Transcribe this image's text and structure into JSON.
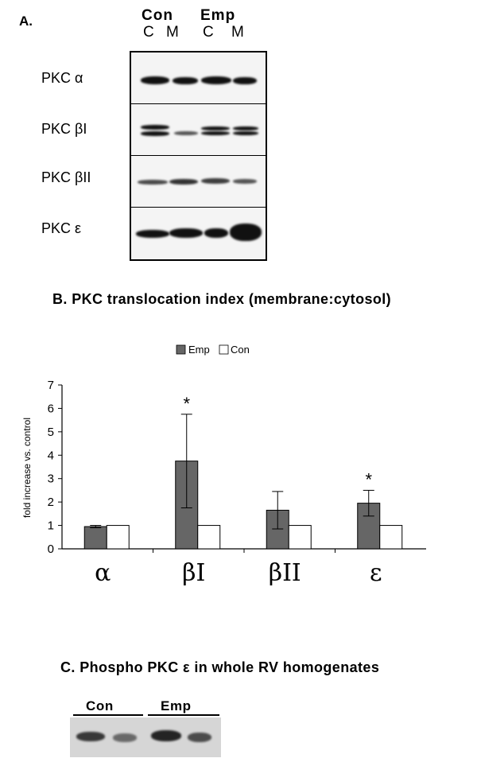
{
  "panel_a": {
    "label": "A.",
    "group_labels": [
      "Con",
      "Emp"
    ],
    "lane_labels": [
      "C",
      "M",
      "C",
      "M"
    ],
    "row_labels": [
      "PKC α",
      "PKC βI",
      "PKC βII",
      "PKC ε"
    ]
  },
  "panel_b": {
    "title": "B. PKC translocation index (membrane:cytosol)"
  },
  "panel_c": {
    "title": "C.  Phospho PKC ε in whole RV homogenates",
    "group_labels": [
      "Con",
      "Emp"
    ]
  },
  "chart_data": {
    "type": "bar",
    "categories": [
      "α",
      "βI",
      "βII",
      "ε"
    ],
    "series": [
      {
        "name": "Emp",
        "values": [
          0.95,
          3.75,
          1.65,
          1.95
        ],
        "errors": [
          0.05,
          2.0,
          0.8,
          0.55
        ],
        "color": "#666666"
      },
      {
        "name": "Con",
        "values": [
          1.0,
          1.0,
          1.0,
          1.0
        ],
        "errors": [
          0,
          0,
          0,
          0
        ],
        "color": "#ffffff"
      }
    ],
    "significance": [
      "",
      "*",
      "",
      "*"
    ],
    "ylabel": "fold increase vs. control",
    "xlabel": "",
    "ylim": [
      0,
      7
    ],
    "yticks": [
      "0",
      "1",
      "2",
      "3",
      "4",
      "5",
      "6",
      "7"
    ],
    "legend_position": "top",
    "grid": false
  }
}
